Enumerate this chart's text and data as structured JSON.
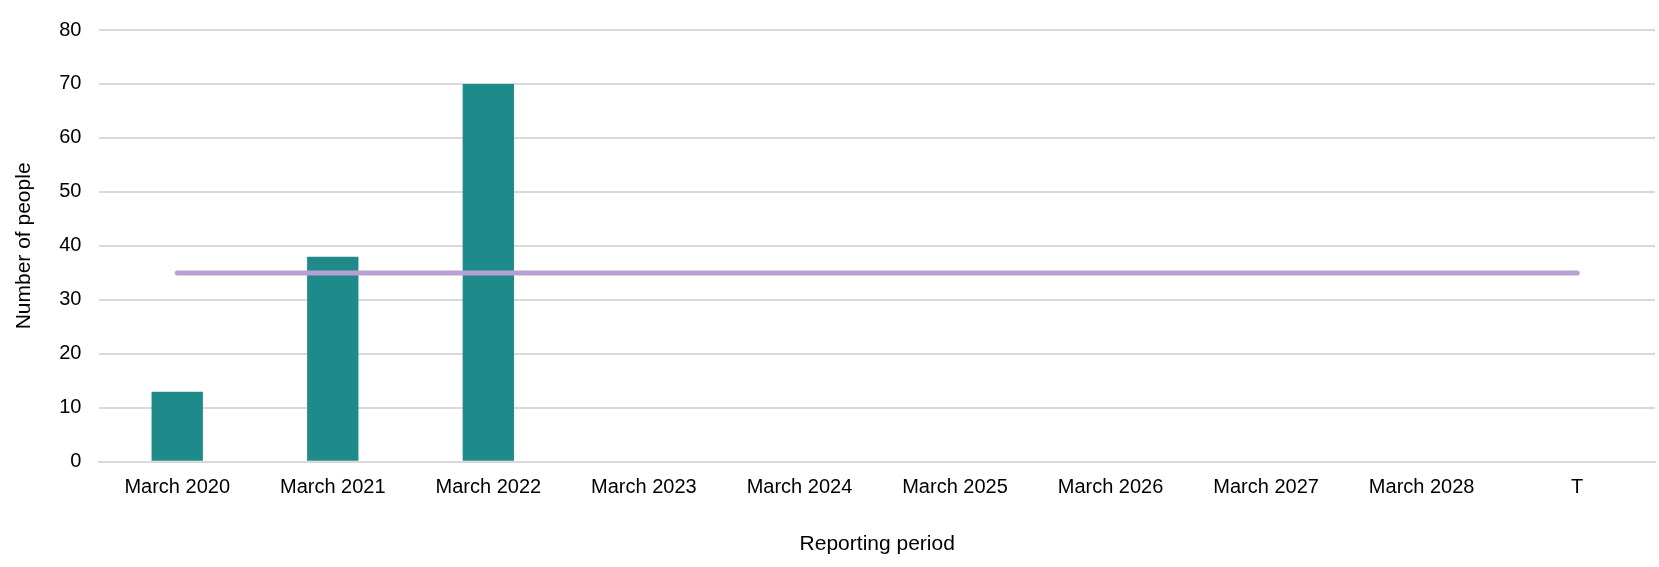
{
  "chart_data": {
    "type": "bar",
    "xlabel": "Reporting period",
    "ylabel": "Number of people",
    "categories": [
      "March 2020",
      "March 2021",
      "March 2022",
      "March 2023",
      "March 2024",
      "March 2025",
      "March 2026",
      "March 2027",
      "March 2028",
      "T"
    ],
    "series": [
      {
        "color": "#1f8a8a",
        "values": [
          13,
          38,
          70,
          null,
          null,
          null,
          null,
          null,
          null,
          null
        ]
      },
      {
        "type": "line",
        "color": "#b8a0d4",
        "values": [
          35,
          35,
          35,
          35,
          35,
          35,
          35,
          35,
          35,
          35
        ]
      }
    ],
    "ylim": [
      0,
      80
    ],
    "yticks": [
      0,
      10,
      20,
      30,
      40,
      50,
      60,
      70,
      80
    ],
    "grid": "y",
    "legend": false,
    "marker": "none"
  }
}
